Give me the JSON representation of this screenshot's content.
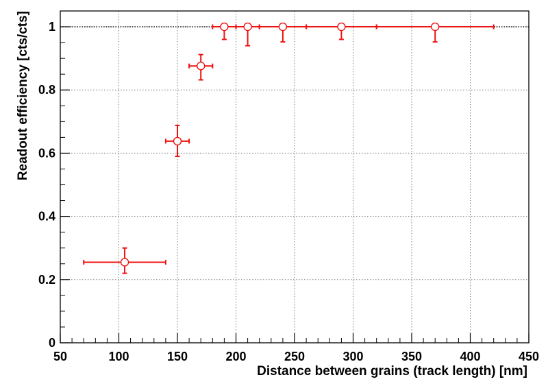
{
  "chart_data": {
    "type": "scatter",
    "title": "",
    "xlabel": "Distance between grains (track length) [nm]",
    "ylabel": "Readout efficiency [cts/cts]",
    "xlim": [
      50,
      450
    ],
    "ylim": [
      0,
      1.05
    ],
    "x_ticks": [
      50,
      100,
      150,
      200,
      250,
      300,
      350,
      400,
      450
    ],
    "x_tick_labels": [
      "50",
      "100",
      "150",
      "200",
      "250",
      "300",
      "350",
      "400",
      "450"
    ],
    "y_ticks": [
      0,
      0.2,
      0.4,
      0.6,
      0.8,
      1
    ],
    "y_tick_labels": [
      "0",
      "0.2",
      "0.4",
      "0.6",
      "0.8",
      "1"
    ],
    "grid": true,
    "reference_line_y": 1,
    "series": [
      {
        "marker": "open-circle",
        "color": "#ee1111",
        "points": [
          {
            "x": 105,
            "y": 0.255,
            "xerr": [
              35,
              35
            ],
            "yerr": [
              0.035,
              0.045
            ]
          },
          {
            "x": 150,
            "y": 0.638,
            "xerr": [
              10,
              10
            ],
            "yerr": [
              0.048,
              0.05
            ]
          },
          {
            "x": 170,
            "y": 0.876,
            "xerr": [
              10,
              10
            ],
            "yerr": [
              0.044,
              0.036
            ]
          },
          {
            "x": 190,
            "y": 1.0,
            "xerr": [
              10,
              10
            ],
            "yerr": [
              0.04,
              0
            ]
          },
          {
            "x": 210,
            "y": 1.0,
            "xerr": [
              10,
              10
            ],
            "yerr": [
              0.06,
              0
            ]
          },
          {
            "x": 240,
            "y": 1.0,
            "xerr": [
              20,
              20
            ],
            "yerr": [
              0.048,
              0
            ]
          },
          {
            "x": 290,
            "y": 1.0,
            "xerr": [
              30,
              30
            ],
            "yerr": [
              0.04,
              0
            ]
          },
          {
            "x": 370,
            "y": 1.0,
            "xerr": [
              50,
              50
            ],
            "yerr": [
              0.048,
              0
            ]
          }
        ]
      }
    ]
  }
}
